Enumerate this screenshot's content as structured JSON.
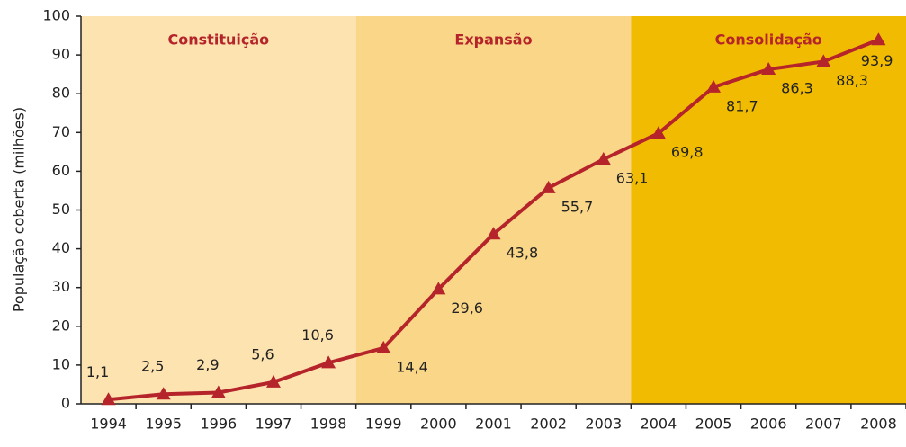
{
  "chart_data": {
    "type": "line",
    "y_label": "População coberta (milhões)",
    "categories": [
      "1994",
      "1995",
      "1996",
      "1997",
      "1998",
      "1999",
      "2000",
      "2001",
      "2002",
      "2003",
      "2004",
      "2005",
      "2006",
      "2007",
      "2008"
    ],
    "series": [
      {
        "color": "#b5242a",
        "values": [
          1.1,
          2.5,
          2.9,
          5.6,
          10.6,
          14.4,
          29.6,
          43.8,
          55.7,
          63.1,
          69.8,
          81.7,
          86.3,
          88.3,
          93.9
        ],
        "value_labels": [
          "1,1",
          "2,5",
          "2,9",
          "5,6",
          "10,6",
          "14,4",
          "29,6",
          "43,8",
          "55,7",
          "63,1",
          "69,8",
          "81,7",
          "86,3",
          "88,3",
          "93,9"
        ]
      }
    ],
    "regions": [
      {
        "label": "Constituição",
        "from": "1994",
        "to": "1998",
        "color": "#fde3b0"
      },
      {
        "label": "Expansão",
        "from": "1999",
        "to": "2003",
        "color": "#fad688"
      },
      {
        "label": "Consolidação",
        "from": "2004",
        "to": "2008",
        "color": "#f0bb00"
      }
    ],
    "ylim": [
      0,
      100
    ],
    "yticks": [
      0,
      10,
      20,
      30,
      40,
      50,
      60,
      70,
      80,
      90,
      100
    ]
  }
}
